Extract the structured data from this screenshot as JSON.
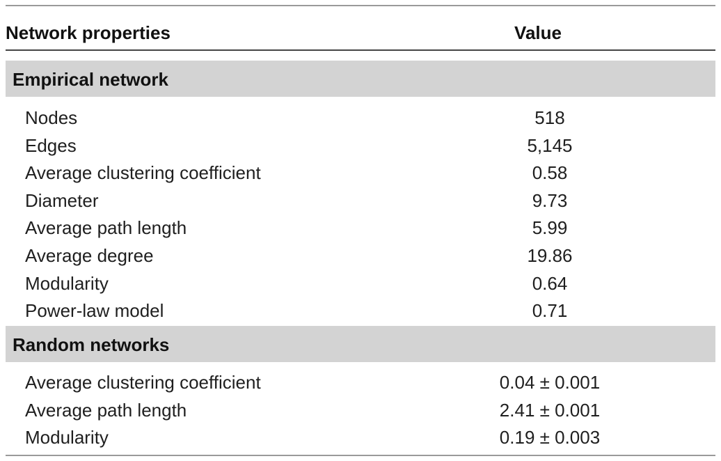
{
  "table": {
    "header": {
      "property_label": "Network properties",
      "value_label": "Value"
    },
    "sections": [
      {
        "title": "Empirical network",
        "rows": [
          {
            "property": "Nodes",
            "value": "518"
          },
          {
            "property": "Edges",
            "value": "5,145"
          },
          {
            "property": "Average clustering coefficient",
            "value": "0.58"
          },
          {
            "property": "Diameter",
            "value": "9.73"
          },
          {
            "property": "Average path length",
            "value": "5.99"
          },
          {
            "property": "Average degree",
            "value": "19.86"
          },
          {
            "property": "Modularity",
            "value": "0.64"
          },
          {
            "property": "Power-law model",
            "value": "0.71"
          }
        ]
      },
      {
        "title": "Random networks",
        "rows": [
          {
            "property": "Average clustering coefficient",
            "value": "0.04 ± 0.001"
          },
          {
            "property": "Average path length",
            "value": "2.41 ± 0.001"
          },
          {
            "property": "Modularity",
            "value": "0.19 ± 0.003"
          }
        ]
      }
    ]
  }
}
